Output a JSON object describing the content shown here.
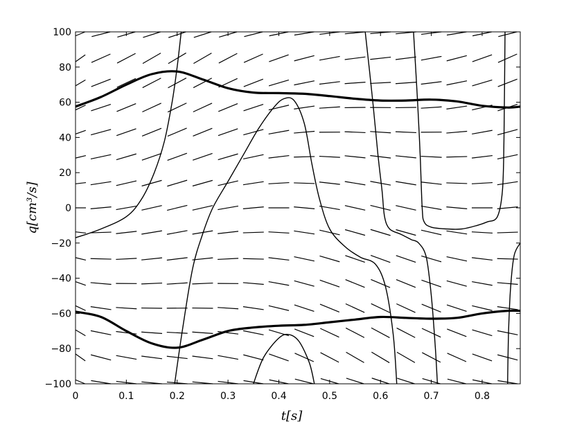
{
  "chart_data": {
    "type": "line",
    "title": "",
    "xlabel": "t[s]",
    "ylabel": "q[cm³/s]",
    "xlim": [
      0,
      0.875
    ],
    "ylim": [
      -100,
      100
    ],
    "grid": false,
    "legend": "none",
    "x_ticks": [
      "0",
      "0.1",
      "0.2",
      "0.3",
      "0.4",
      "0.5",
      "0.6",
      "0.7",
      "0.8"
    ],
    "y_ticks": [
      "100",
      "80",
      "60",
      "40",
      "20",
      "0",
      "−20",
      "−40",
      "−60",
      "−80",
      "−100"
    ],
    "direction_field": {
      "t_values": [
        0.0,
        0.05,
        0.1,
        0.15,
        0.2,
        0.25,
        0.3,
        0.35,
        0.4,
        0.45,
        0.5,
        0.55,
        0.6,
        0.65,
        0.7,
        0.75,
        0.8,
        0.85
      ],
      "q_values": [
        100,
        85,
        71,
        57,
        43,
        29,
        14,
        0,
        -14,
        -29,
        -43,
        -57,
        -71,
        -85,
        -100
      ]
    },
    "series": [
      {
        "style": "thick",
        "points": [
          [
            0,
            57.5
          ],
          [
            0.05,
            63
          ],
          [
            0.1,
            70
          ],
          [
            0.15,
            76
          ],
          [
            0.2,
            77.5
          ],
          [
            0.25,
            73
          ],
          [
            0.3,
            68
          ],
          [
            0.35,
            65.5
          ],
          [
            0.4,
            65.2
          ],
          [
            0.45,
            64.8
          ],
          [
            0.5,
            63.5
          ],
          [
            0.55,
            62
          ],
          [
            0.6,
            61
          ],
          [
            0.65,
            61
          ],
          [
            0.7,
            61.5
          ],
          [
            0.75,
            60.5
          ],
          [
            0.8,
            58
          ],
          [
            0.85,
            57
          ],
          [
            0.875,
            57.5
          ]
        ]
      },
      {
        "style": "thick",
        "points": [
          [
            0,
            -59
          ],
          [
            0.05,
            -62
          ],
          [
            0.1,
            -70
          ],
          [
            0.15,
            -77
          ],
          [
            0.2,
            -79.5
          ],
          [
            0.25,
            -75
          ],
          [
            0.3,
            -70
          ],
          [
            0.35,
            -68
          ],
          [
            0.4,
            -67
          ],
          [
            0.45,
            -66.5
          ],
          [
            0.5,
            -65
          ],
          [
            0.55,
            -63.5
          ],
          [
            0.6,
            -62
          ],
          [
            0.65,
            -62.5
          ],
          [
            0.7,
            -63
          ],
          [
            0.75,
            -62.5
          ],
          [
            0.8,
            -60
          ],
          [
            0.85,
            -58.5
          ],
          [
            0.875,
            -58.5
          ]
        ]
      },
      {
        "style": "thin",
        "points": [
          [
            0,
            -17
          ],
          [
            0.05,
            -12
          ],
          [
            0.1,
            -5
          ],
          [
            0.13,
            5
          ],
          [
            0.155,
            20
          ],
          [
            0.175,
            38
          ],
          [
            0.19,
            60
          ],
          [
            0.2,
            80
          ],
          [
            0.208,
            100
          ]
        ]
      },
      {
        "style": "thin",
        "points": [
          [
            0.195,
            -100
          ],
          [
            0.21,
            -70
          ],
          [
            0.23,
            -35
          ],
          [
            0.25,
            -15
          ],
          [
            0.27,
            0
          ],
          [
            0.3,
            15
          ],
          [
            0.33,
            30
          ],
          [
            0.36,
            45
          ],
          [
            0.39,
            57
          ],
          [
            0.41,
            62
          ],
          [
            0.43,
            61
          ],
          [
            0.45,
            48
          ],
          [
            0.465,
            25
          ],
          [
            0.48,
            5
          ],
          [
            0.5,
            -12
          ],
          [
            0.53,
            -22
          ],
          [
            0.56,
            -28
          ],
          [
            0.59,
            -32
          ],
          [
            0.61,
            -45
          ],
          [
            0.625,
            -72
          ],
          [
            0.632,
            -100
          ]
        ]
      },
      {
        "style": "thin",
        "points": [
          [
            0.35,
            -100
          ],
          [
            0.37,
            -85
          ],
          [
            0.4,
            -74
          ],
          [
            0.42,
            -72
          ],
          [
            0.44,
            -76
          ],
          [
            0.46,
            -88
          ],
          [
            0.47,
            -100
          ]
        ]
      },
      {
        "style": "thin",
        "points": [
          [
            0.57,
            100
          ],
          [
            0.585,
            60
          ],
          [
            0.595,
            30
          ],
          [
            0.603,
            10
          ],
          [
            0.608,
            -5
          ],
          [
            0.618,
            -12
          ],
          [
            0.64,
            -15
          ],
          [
            0.66,
            -18
          ],
          [
            0.675,
            -20
          ],
          [
            0.69,
            -28
          ],
          [
            0.7,
            -50
          ],
          [
            0.708,
            -80
          ],
          [
            0.712,
            -100
          ]
        ]
      },
      {
        "style": "thin",
        "points": [
          [
            0.665,
            100
          ],
          [
            0.673,
            60
          ],
          [
            0.678,
            30
          ],
          [
            0.682,
            0
          ],
          [
            0.686,
            -8
          ],
          [
            0.7,
            -11
          ],
          [
            0.73,
            -12
          ],
          [
            0.76,
            -12
          ],
          [
            0.79,
            -10
          ],
          [
            0.81,
            -8
          ],
          [
            0.83,
            -5
          ],
          [
            0.84,
            10
          ],
          [
            0.843,
            40
          ],
          [
            0.845,
            100
          ]
        ]
      },
      {
        "style": "thin",
        "points": [
          [
            0.85,
            -100
          ],
          [
            0.852,
            -70
          ],
          [
            0.856,
            -45
          ],
          [
            0.863,
            -27
          ],
          [
            0.875,
            -20
          ]
        ]
      }
    ]
  }
}
